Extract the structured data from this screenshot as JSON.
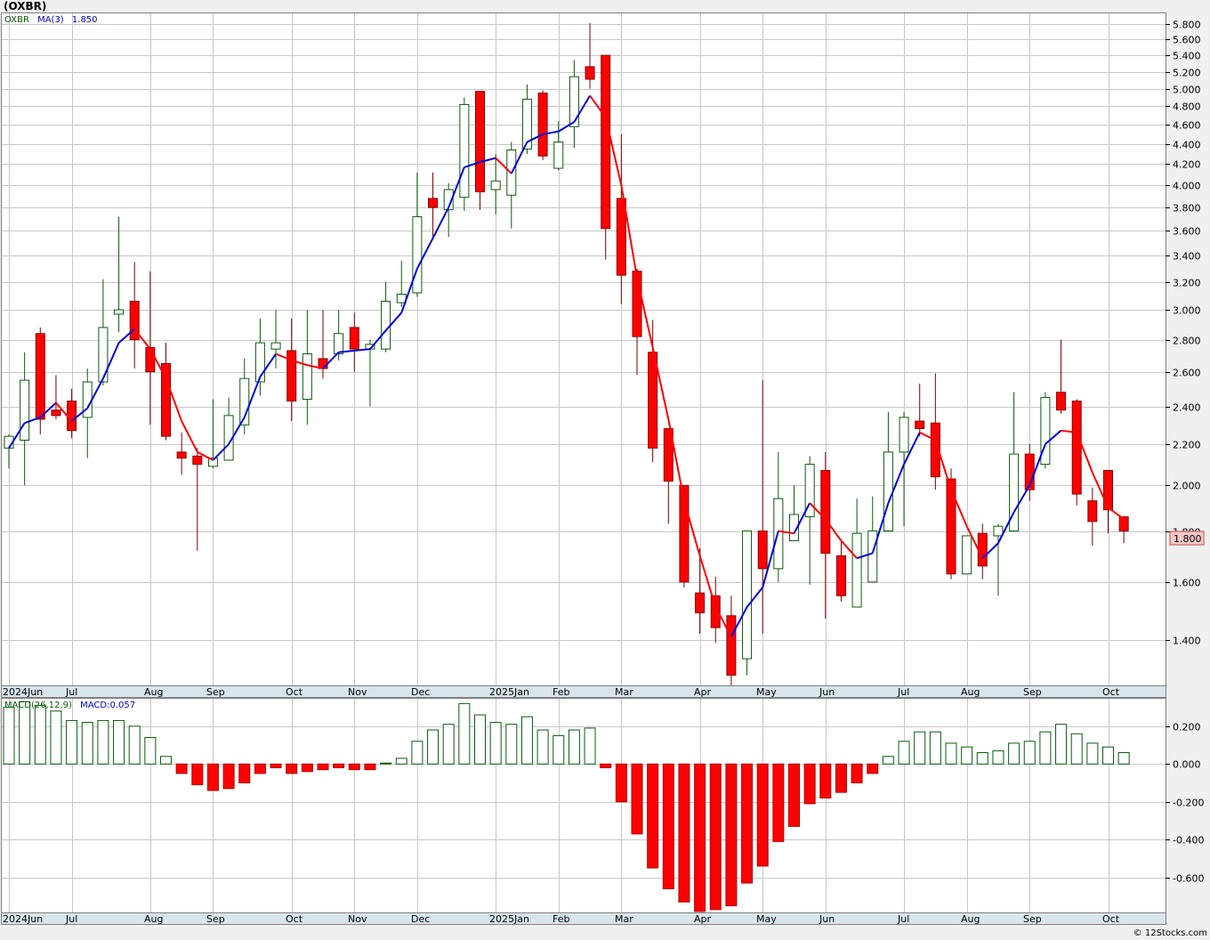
{
  "title": "(OXBR)",
  "copyright": "© 12Stocks.com",
  "colors": {
    "up": "#0a5c0a",
    "down": "#ff0000",
    "ma_up": "#0000dd",
    "ma_down": "#ff0000",
    "grid": "#c8c8c8",
    "last_price_bg": "#f7c9c9"
  },
  "chart_data": [
    {
      "type": "candlestick",
      "panel": "price",
      "symbol": "OXBR",
      "legend": {
        "symbol": "OXBR",
        "ma_label": "MA(3)",
        "ma_value": "1.850"
      },
      "x_labels": [
        "2024Jun",
        "Jul",
        "Aug",
        "Sep",
        "Oct",
        "Nov",
        "Dec",
        "2025Jan",
        "Feb",
        "Mar",
        "Apr",
        "May",
        "Jun",
        "Jul",
        "Aug",
        "Sep",
        "Oct"
      ],
      "x_label_weeks": [
        0,
        4,
        9,
        13,
        18,
        22,
        26,
        31,
        35,
        39,
        44,
        48,
        52,
        57,
        61,
        65,
        70
      ],
      "y_scale": "log",
      "ylim": [
        1.26,
        5.95
      ],
      "y_ticks": [
        "1.400",
        "1.600",
        "1.800",
        "2.000",
        "2.200",
        "2.400",
        "2.600",
        "2.800",
        "3.000",
        "3.200",
        "3.400",
        "3.600",
        "3.800",
        "4.000",
        "4.200",
        "4.400",
        "4.600",
        "4.800",
        "5.000",
        "5.200",
        "5.400",
        "5.600",
        "5.800"
      ],
      "last_price": "1.800",
      "candles": [
        [
          2.18,
          2.24,
          2.08,
          2.25
        ],
        [
          2.22,
          2.55,
          2.0,
          2.72
        ],
        [
          2.84,
          2.33,
          2.25,
          2.88
        ],
        [
          2.38,
          2.35,
          2.33,
          2.58
        ],
        [
          2.43,
          2.27,
          2.23,
          2.5
        ],
        [
          2.34,
          2.54,
          2.13,
          2.62
        ],
        [
          2.54,
          2.88,
          2.52,
          3.22
        ],
        [
          2.97,
          3.0,
          2.85,
          3.72
        ],
        [
          3.06,
          2.8,
          2.62,
          3.35
        ],
        [
          2.75,
          2.6,
          2.3,
          3.28
        ],
        [
          2.65,
          2.24,
          2.22,
          2.78
        ],
        [
          2.16,
          2.13,
          2.05,
          2.26
        ],
        [
          2.14,
          2.1,
          1.72,
          2.18
        ],
        [
          2.09,
          2.13,
          2.08,
          2.44
        ],
        [
          2.12,
          2.35,
          2.12,
          2.45
        ],
        [
          2.3,
          2.56,
          2.25,
          2.68
        ],
        [
          2.54,
          2.78,
          2.46,
          2.94
        ],
        [
          2.74,
          2.78,
          2.62,
          3.0
        ],
        [
          2.73,
          2.43,
          2.32,
          2.94
        ],
        [
          2.44,
          2.71,
          2.3,
          3.0
        ],
        [
          2.68,
          2.62,
          2.56,
          3.0
        ],
        [
          2.71,
          2.84,
          2.67,
          3.0
        ],
        [
          2.88,
          2.74,
          2.6,
          2.98
        ],
        [
          2.74,
          2.77,
          2.4,
          2.8
        ],
        [
          2.74,
          3.06,
          2.72,
          3.2
        ],
        [
          3.05,
          3.11,
          3.02,
          3.36
        ],
        [
          3.12,
          3.72,
          3.09,
          4.12
        ],
        [
          3.88,
          3.8,
          3.54,
          4.12
        ],
        [
          3.78,
          3.96,
          3.55,
          4.02
        ],
        [
          3.89,
          4.82,
          3.77,
          4.9
        ],
        [
          4.97,
          3.94,
          3.78,
          4.97
        ],
        [
          3.96,
          4.04,
          3.74,
          4.3
        ],
        [
          3.91,
          4.34,
          3.62,
          4.42
        ],
        [
          4.35,
          4.88,
          4.3,
          5.05
        ],
        [
          4.95,
          4.28,
          4.24,
          4.98
        ],
        [
          4.16,
          4.42,
          4.14,
          4.64
        ],
        [
          4.58,
          5.14,
          4.36,
          5.34
        ],
        [
          5.26,
          5.11,
          5.0,
          5.82
        ],
        [
          5.4,
          3.62,
          3.37,
          5.4
        ],
        [
          3.88,
          3.25,
          3.04,
          4.5
        ],
        [
          3.28,
          2.82,
          2.58,
          3.3
        ],
        [
          2.72,
          2.18,
          2.11,
          2.93
        ],
        [
          2.28,
          2.02,
          1.83,
          2.28
        ],
        [
          2.0,
          1.6,
          1.58,
          2.0
        ],
        [
          1.56,
          1.49,
          1.42,
          1.73
        ],
        [
          1.55,
          1.44,
          1.39,
          1.62
        ],
        [
          1.48,
          1.29,
          1.26,
          1.55
        ],
        [
          1.34,
          1.8,
          1.29,
          1.8
        ],
        [
          1.8,
          1.65,
          1.42,
          2.55
        ],
        [
          1.65,
          1.94,
          1.6,
          2.16
        ],
        [
          1.76,
          1.87,
          1.76,
          2.0
        ],
        [
          1.86,
          2.1,
          1.59,
          2.14
        ],
        [
          2.07,
          1.71,
          1.47,
          2.16
        ],
        [
          1.7,
          1.55,
          1.53,
          1.76
        ],
        [
          1.51,
          1.79,
          1.51,
          1.94
        ],
        [
          1.6,
          1.8,
          1.6,
          1.95
        ],
        [
          1.8,
          2.16,
          1.8,
          2.37
        ],
        [
          2.16,
          2.34,
          1.82,
          2.37
        ],
        [
          2.32,
          2.28,
          2.24,
          2.53
        ],
        [
          2.31,
          2.04,
          1.98,
          2.59
        ],
        [
          2.03,
          1.63,
          1.61,
          2.08
        ],
        [
          1.63,
          1.78,
          1.63,
          1.78
        ],
        [
          1.79,
          1.66,
          1.61,
          1.83
        ],
        [
          1.78,
          1.82,
          1.55,
          1.83
        ],
        [
          1.8,
          2.15,
          1.8,
          2.48
        ],
        [
          2.15,
          1.98,
          1.93,
          2.2
        ],
        [
          2.1,
          2.45,
          2.08,
          2.48
        ],
        [
          2.48,
          2.38,
          2.36,
          2.8
        ],
        [
          2.43,
          1.96,
          1.91,
          2.44
        ],
        [
          1.93,
          1.84,
          1.74,
          1.99
        ],
        [
          2.07,
          1.89,
          1.79,
          2.07
        ],
        [
          1.86,
          1.8,
          1.75,
          1.86
        ]
      ],
      "ma3": [
        2.18,
        2.31,
        2.34,
        2.42,
        2.32,
        2.39,
        2.56,
        2.78,
        2.87,
        2.74,
        2.56,
        2.32,
        2.16,
        2.12,
        2.2,
        2.34,
        2.57,
        2.71,
        2.67,
        2.64,
        2.62,
        2.72,
        2.73,
        2.74,
        2.86,
        2.98,
        3.3,
        3.54,
        3.8,
        4.17,
        4.22,
        4.26,
        4.11,
        4.42,
        4.5,
        4.53,
        4.63,
        4.92,
        4.68,
        4.0,
        3.23,
        2.75,
        2.33,
        1.93,
        1.7,
        1.51,
        1.41,
        1.51,
        1.58,
        1.8,
        1.79,
        1.92,
        1.85,
        1.76,
        1.69,
        1.71,
        1.92,
        2.1,
        2.26,
        2.22,
        1.98,
        1.82,
        1.69,
        1.75,
        1.88,
        2.0,
        2.2,
        2.27,
        2.26,
        2.06,
        1.9,
        1.85
      ]
    },
    {
      "type": "bar",
      "panel": "macd",
      "series_label": "MACD(26,12,9)",
      "value_label": "MACD:0.057",
      "ylim": [
        -0.785,
        0.345
      ],
      "y_ticks": [
        "0.200",
        "0.000",
        "-0.200",
        "-0.400",
        "-0.600"
      ],
      "x_labels": [
        "2024Jun",
        "Jul",
        "Aug",
        "Sep",
        "Oct",
        "Nov",
        "Dec",
        "2025Jan",
        "Feb",
        "Mar",
        "Apr",
        "May",
        "Jun",
        "Jul",
        "Aug",
        "Sep",
        "Oct"
      ],
      "values": [
        0.3,
        0.33,
        0.31,
        0.28,
        0.23,
        0.22,
        0.23,
        0.23,
        0.2,
        0.14,
        0.04,
        -0.05,
        -0.11,
        -0.14,
        -0.13,
        -0.1,
        -0.05,
        -0.02,
        -0.05,
        -0.04,
        -0.03,
        -0.02,
        -0.03,
        -0.03,
        0.005,
        0.03,
        0.12,
        0.18,
        0.21,
        0.32,
        0.26,
        0.22,
        0.21,
        0.25,
        0.18,
        0.15,
        0.18,
        0.19,
        -0.02,
        -0.2,
        -0.37,
        -0.55,
        -0.66,
        -0.73,
        -0.78,
        -0.77,
        -0.75,
        -0.63,
        -0.54,
        -0.41,
        -0.33,
        -0.21,
        -0.18,
        -0.15,
        -0.1,
        -0.05,
        0.04,
        0.12,
        0.17,
        0.17,
        0.11,
        0.09,
        0.06,
        0.07,
        0.11,
        0.12,
        0.17,
        0.21,
        0.16,
        0.11,
        0.09,
        0.06
      ]
    }
  ]
}
